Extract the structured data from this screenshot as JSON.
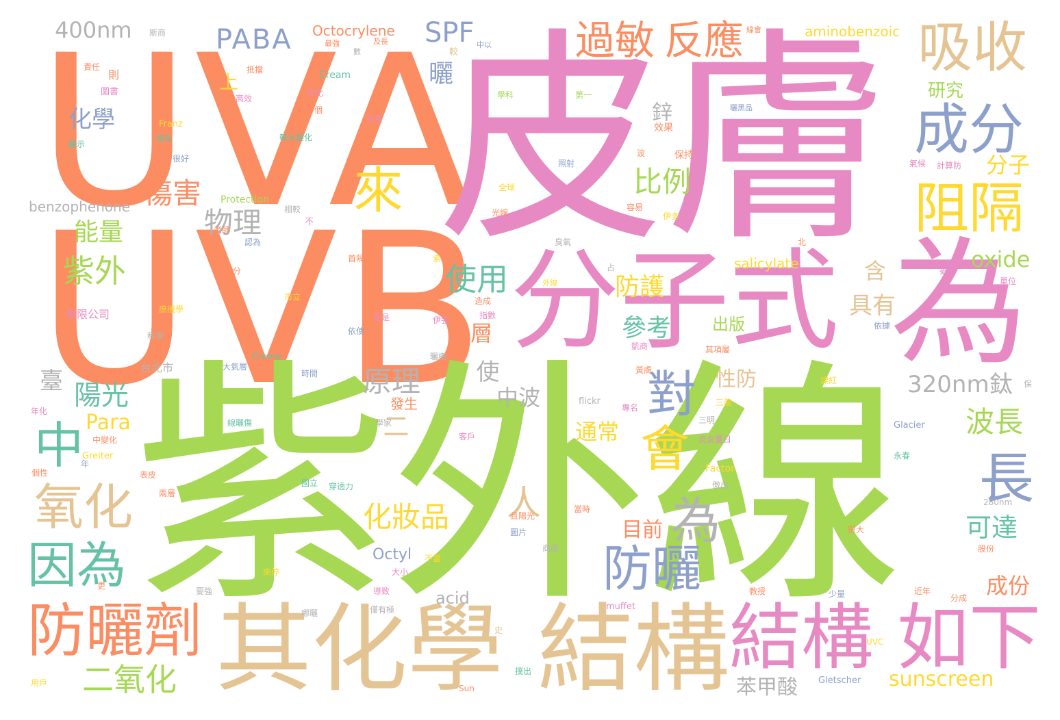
{
  "palette": {
    "orange": "#fc8d62",
    "pink": "#e78ac3",
    "green": "#a6d854",
    "tan": "#e5c494",
    "blue": "#8da0cb",
    "teal": "#66c2a5",
    "yellow": "#ffd92f",
    "gray": "#b3b3b3"
  },
  "words": {
    "uva": "UVA",
    "uvb": "UVB",
    "pifu": "皮膚",
    "ziwaixian": "紫外線",
    "fenzishi": "分子式",
    "wei_big": "為",
    "qihuaxue": "其化學",
    "jiegou_tan": "結構",
    "jiegou_pink": "結構",
    "ruxia": "如下",
    "fangshaiji": "防曬劑",
    "xishou": "吸收",
    "chengfen": "成分",
    "zuge": "阻隔",
    "guomin": "過敏",
    "fanying": "反應",
    "lai": "來",
    "dui": "對",
    "hui": "會",
    "wei_gray": "為",
    "fangshai": "防曬",
    "zhang": "長",
    "zhong": "中",
    "yanghua": "氧化",
    "yinwei": "因為",
    "ren": "人",
    "huazhuangpin": "化妝品",
    "erganghua": "二氧化",
    "paba": "PABA",
    "spf": "SPF",
    "nm400": "400nm",
    "shai": "曬",
    "shanghai": "傷害",
    "wuli": "物理",
    "ziwai": "紫外",
    "nengliang": "能量",
    "huaxue": "化學",
    "shang": "上",
    "bili": "比例",
    "shiyong": "使用",
    "fanghu": "防護",
    "cankao": "參考",
    "yuanli": "原理",
    "yangguang": "陽光",
    "para": "Para",
    "bochang": "波長",
    "kedao": "可達",
    "chengfen2": "成份",
    "mumqian": "目前",
    "tongchang": "通常",
    "nm320": "320nm",
    "tai": "鈦",
    "fenzi": "分子",
    "yanjiu": "研究",
    "xin": "鋅",
    "oxide": "oxide",
    "han": "含",
    "juyou": "具有",
    "ceng": "層",
    "chuban": "出版",
    "xingfang": "性防",
    "shi": "使",
    "zhongbo": "中波",
    "er": "二",
    "taiwan": "臺",
    "benjiasuan": "苯甲酸",
    "sunscreen": "sunscreen",
    "acid": "acid",
    "octyl": "Octyl",
    "salicylate": "salicylate",
    "octocrylene": "Octocrylene",
    "aminobenzoic": "aminobenzoic",
    "benzophenone": "benzophenone",
    "protection": "Protection",
    "cream": "Cream",
    "creme": "Creme",
    "franz": "Franz",
    "greiter": "Greiter",
    "factor": "Factor",
    "glacier": "Glacier",
    "gletscher": "Gletscher",
    "flickr": "flickr",
    "muffet": "muffet",
    "sun": "Sun",
    "uvc": "UVC",
    "nm280": "280nm",
    "taibeishi": "台北市",
    "youxiangongsi": "有限公司",
    "dabufen": "大部分",
    "sm_1": "斯商",
    "sm_2": "最強",
    "sm_3": "較",
    "sm_4": "數",
    "sm_5": "及長",
    "sm_6": "中以",
    "sm_7": "線會",
    "sm_8": "責任",
    "sm_9": "則",
    "sm_10": "圖書",
    "sm_11": "抵擋",
    "sm_12": "高效",
    "sm_13": "老化",
    "sm_14": "一個",
    "sm_15": "學科",
    "sm_16": "第一",
    "sm_17": "曬黑品",
    "sm_18": "多長",
    "sm_19": "效果",
    "sm_20": "較大變化",
    "sm_21": "顯示",
    "sm_22": "學系",
    "sm_23": "很好",
    "sm_24": "桂皮",
    "sm_25": "保持",
    "sm_26": "波",
    "sm_27": "照射",
    "sm_28": "氣候",
    "sm_29": "計算防",
    "sm_30": "全球",
    "sm_31": "光線",
    "sm_32": "容易",
    "sm_33": "伊多",
    "sm_34": "北",
    "sm_35": "臭氧",
    "sm_36": "老師",
    "sm_37": "認為",
    "sm_38": "不",
    "sm_39": "相較",
    "sm_40": "首隔下",
    "sm_41": "紫",
    "sm_42": "占",
    "sm_43": "外線",
    "sm_44": "造成",
    "sm_45": "市立",
    "sm_46": "指數",
    "sm_47": "更是",
    "sm_48": "伊強",
    "sm_49": "依使",
    "sm_50": "庶機學",
    "sm_51": "科學",
    "sm_52": "大氣層",
    "sm_53": "時間",
    "sm_54": "發生",
    "sm_55": "凱商",
    "sm_56": "其項屬",
    "sm_57": "三能",
    "sm_58": "三明",
    "sm_59": "永春",
    "sm_60": "中變化",
    "sm_61": "年化",
    "sm_62": "線曬傷",
    "sm_63": "曬樹",
    "sm_64": "客戶",
    "sm_65": "國立",
    "sm_66": "穿透力",
    "sm_67": "炎炎夏日",
    "sm_68": "傲出",
    "sm_69": "學家",
    "sm_70": "年",
    "sm_71": "個性",
    "sm_72": "表皮",
    "sm_73": "兩層",
    "sm_74": "且陽光",
    "sm_75": "圖片",
    "sm_76": "商品",
    "sm_77": "當時",
    "sm_78": "很大",
    "sm_79": "來停",
    "sm_80": "大小",
    "sm_81": "不當",
    "sm_82": "要強",
    "sm_83": "導致",
    "sm_84": "僅有極",
    "sm_85": "哪曬",
    "sm_86": "燦紅",
    "sm_87": "股份",
    "sm_88": "教授",
    "sm_89": "少量",
    "sm_90": "近年",
    "sm_91": "分成",
    "sm_92": "用戶",
    "sm_93": "撲出",
    "sm_94": "史",
    "sm_95": "更",
    "sm_96": "單位",
    "sm_97": "攝氏",
    "sm_98": "依據",
    "sm_99": "保",
    "sm_100": "黃膚",
    "sm_101": "專名"
  }
}
